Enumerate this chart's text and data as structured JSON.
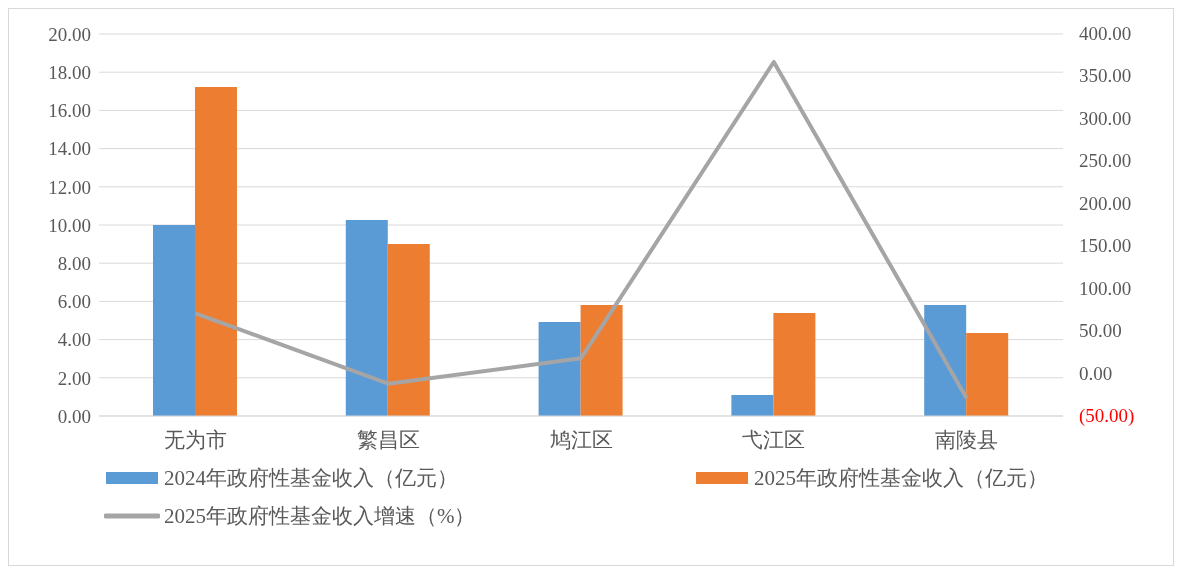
{
  "chart_data": {
    "type": "bar",
    "categories": [
      "无为市",
      "繁昌区",
      "鸠江区",
      "弋江区",
      "南陵县"
    ],
    "series": [
      {
        "name": "2024年政府性基金收入（亿元）",
        "color": "#5b9bd5",
        "values": [
          10.0,
          10.26,
          4.92,
          1.1,
          5.81
        ]
      },
      {
        "name": "2025年政府性基金收入（亿元）",
        "color": "#ed7d31",
        "values": [
          17.22,
          9.0,
          5.81,
          5.39,
          4.35
        ]
      },
      {
        "name": "2025年政府性基金收入增速（%）",
        "type": "line",
        "axis": "y2",
        "color": "#a5a5a5",
        "values": [
          71,
          -12,
          18,
          367,
          -29
        ]
      }
    ],
    "ylim": [
      0,
      20
    ],
    "yticks": [
      {
        "value": 0,
        "label": "0.00"
      },
      {
        "value": 2,
        "label": "2.00"
      },
      {
        "value": 4,
        "label": "4.00"
      },
      {
        "value": 6,
        "label": "6.00"
      },
      {
        "value": 8,
        "label": "8.00"
      },
      {
        "value": 10,
        "label": "10.00"
      },
      {
        "value": 12,
        "label": "12.00"
      },
      {
        "value": 14,
        "label": "14.00"
      },
      {
        "value": 16,
        "label": "16.00"
      },
      {
        "value": 18,
        "label": "18.00"
      },
      {
        "value": 20,
        "label": "20.00"
      }
    ],
    "y2lim": [
      -50,
      400
    ],
    "y2ticks": [
      {
        "value": -50,
        "label": "(50.00)"
      },
      {
        "value": 0,
        "label": "0.00"
      },
      {
        "value": 50,
        "label": "50.00"
      },
      {
        "value": 100,
        "label": "100.00"
      },
      {
        "value": 150,
        "label": "150.00"
      },
      {
        "value": 200,
        "label": "200.00"
      },
      {
        "value": 250,
        "label": "250.00"
      },
      {
        "value": 300,
        "label": "300.00"
      },
      {
        "value": 350,
        "label": "350.00"
      },
      {
        "value": 400,
        "label": "400.00"
      }
    ],
    "grid": "y",
    "legend": "bottom",
    "marker": "none",
    "line_style": "solid"
  }
}
